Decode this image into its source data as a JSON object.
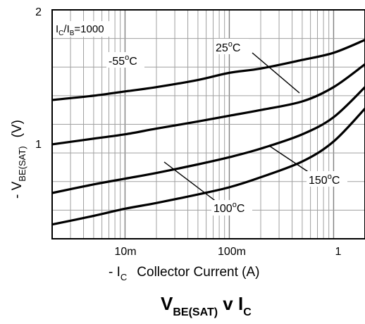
{
  "chart_data": {
    "type": "line",
    "title": {
      "main": "V",
      "main_sub": "BE(SAT)",
      "mid": " v I",
      "mid_sub": "C"
    },
    "xlabel": {
      "prefix": "- I",
      "sub": "C",
      "text": "Collector Current (A)"
    },
    "ylabel": {
      "prefix": "- V",
      "sub": "BE(SAT)",
      "unit": "(V)"
    },
    "condition": {
      "a": "I",
      "a_sub": "C",
      "sep": "/I",
      "b_sub": "B",
      "rest": "=1000"
    },
    "x_scale": "log",
    "xlim": [
      0.002,
      2
    ],
    "ylim": [
      0.4,
      2
    ],
    "x_ticks": [
      {
        "value": 0.01,
        "label": "10m"
      },
      {
        "value": 0.1,
        "label": "100m"
      },
      {
        "value": 1,
        "label": "1"
      }
    ],
    "y_ticks": [
      {
        "value": 1,
        "label": "1"
      },
      {
        "value": 2,
        "label": "2"
      }
    ],
    "grid": true,
    "series": [
      {
        "name": "-55°C",
        "label_text": "-55",
        "unit": "C",
        "x": [
          0.002,
          0.005,
          0.01,
          0.02,
          0.05,
          0.1,
          0.2,
          0.5,
          1,
          2
        ],
        "values": [
          1.37,
          1.4,
          1.43,
          1.46,
          1.51,
          1.56,
          1.59,
          1.65,
          1.7,
          1.79
        ]
      },
      {
        "name": "25°C",
        "label_text": "25",
        "unit": "C",
        "x": [
          0.002,
          0.005,
          0.01,
          0.02,
          0.05,
          0.1,
          0.2,
          0.5,
          1,
          2
        ],
        "values": [
          1.06,
          1.1,
          1.13,
          1.17,
          1.22,
          1.26,
          1.3,
          1.36,
          1.46,
          1.62
        ]
      },
      {
        "name": "100°C",
        "label_text": "100",
        "unit": "C",
        "x": [
          0.002,
          0.005,
          0.01,
          0.02,
          0.05,
          0.1,
          0.2,
          0.5,
          1,
          2
        ],
        "values": [
          0.72,
          0.78,
          0.82,
          0.86,
          0.92,
          0.97,
          1.03,
          1.13,
          1.25,
          1.46
        ]
      },
      {
        "name": "150°C",
        "label_text": "150",
        "unit": "C",
        "x": [
          0.002,
          0.005,
          0.01,
          0.02,
          0.05,
          0.1,
          0.2,
          0.5,
          1,
          2
        ],
        "values": [
          0.5,
          0.56,
          0.61,
          0.65,
          0.71,
          0.76,
          0.83,
          0.94,
          1.08,
          1.31
        ]
      }
    ]
  }
}
